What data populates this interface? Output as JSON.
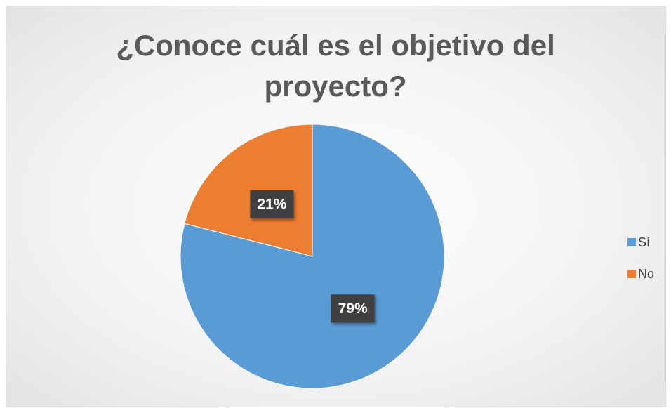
{
  "chart_data": {
    "type": "pie",
    "title": "¿Conoce cuál es el objetivo del proyecto?",
    "categories": [
      "Sí",
      "No"
    ],
    "values": [
      79,
      21
    ],
    "value_labels": [
      "79%",
      "21%"
    ],
    "colors": [
      "#5b9bd5",
      "#ed7d31"
    ],
    "legend": "right"
  }
}
